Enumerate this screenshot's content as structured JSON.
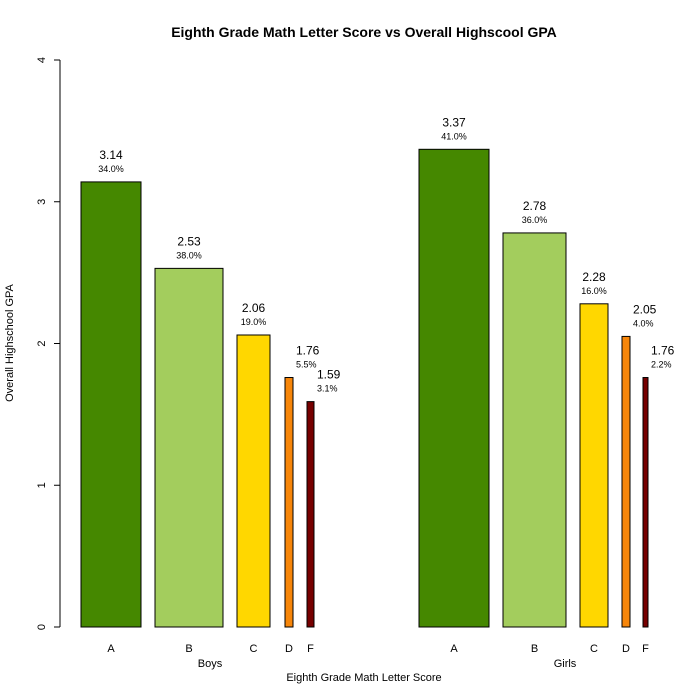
{
  "chart_data": {
    "type": "bar",
    "title": "Eighth Grade Math Letter Score vs Overall Highscool GPA",
    "xlabel": "Eighth Grade Math Letter Score",
    "ylabel": "Overall Highschool GPA",
    "ylim": [
      0,
      4
    ],
    "yticks": [
      "0",
      "1",
      "2",
      "3",
      "4"
    ],
    "grid": false,
    "legend": "none",
    "categories": [
      "A",
      "B",
      "C",
      "D",
      "F"
    ],
    "colors": {
      "A": "#458800",
      "B": "#a3cd5d",
      "C": "#ffd700",
      "D": "#f7860a",
      "F": "#760000"
    },
    "groups": [
      {
        "name": "Boys",
        "values": [
          3.14,
          2.53,
          2.06,
          1.76,
          1.59
        ],
        "value_labels": [
          "3.14",
          "2.53",
          "2.06",
          "1.76",
          "1.59"
        ],
        "percents": [
          "34.0%",
          "38.0%",
          "19.0%",
          "5.5%",
          "3.1%"
        ]
      },
      {
        "name": "Girls",
        "values": [
          3.37,
          2.78,
          2.28,
          2.05,
          1.76
        ],
        "value_labels": [
          "3.37",
          "2.78",
          "2.28",
          "2.05",
          "1.76"
        ],
        "percents": [
          "41.0%",
          "36.0%",
          "16.0%",
          "4.0%",
          "2.2%"
        ]
      }
    ]
  }
}
